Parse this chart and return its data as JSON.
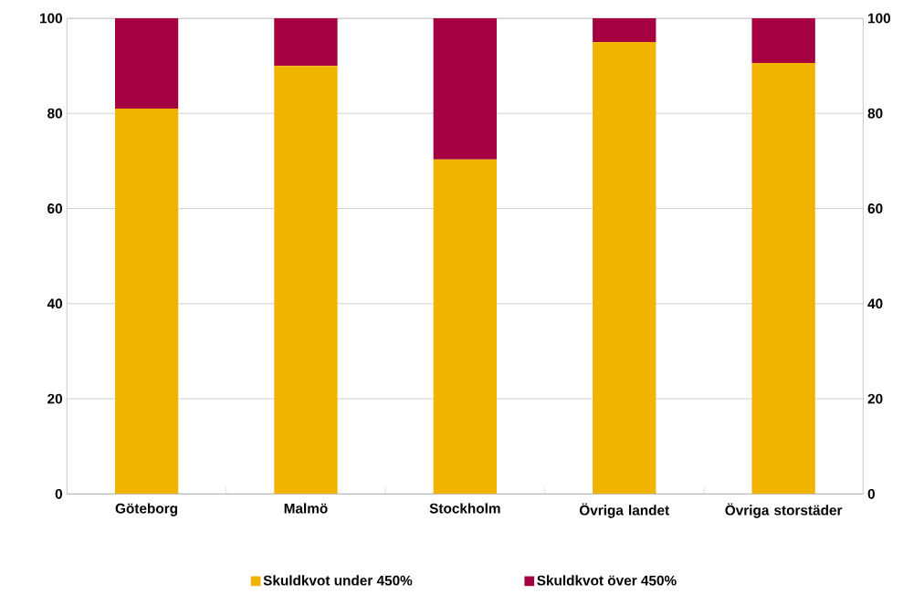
{
  "chart_data": {
    "type": "bar",
    "stacked": true,
    "categories": [
      "Göteborg",
      "Malmö",
      "Stockholm",
      "Övriga landet",
      "Övriga storstäder"
    ],
    "series": [
      {
        "name": "Skuldkvot under 450%",
        "color": "#f0b400",
        "values": [
          81,
          90,
          70.3,
          95,
          90.6
        ]
      },
      {
        "name": "Skuldkvot över 450%",
        "color": "#a50040",
        "values": [
          19,
          10,
          29.7,
          5,
          9.4
        ]
      }
    ],
    "ylim": [
      0,
      100
    ],
    "yticks": [
      0,
      20,
      40,
      60,
      80,
      100
    ],
    "y2lim": [
      0,
      100
    ],
    "y2ticks": [
      0,
      20,
      40,
      60,
      80,
      100
    ],
    "grid": "y",
    "legend": "bottom"
  }
}
